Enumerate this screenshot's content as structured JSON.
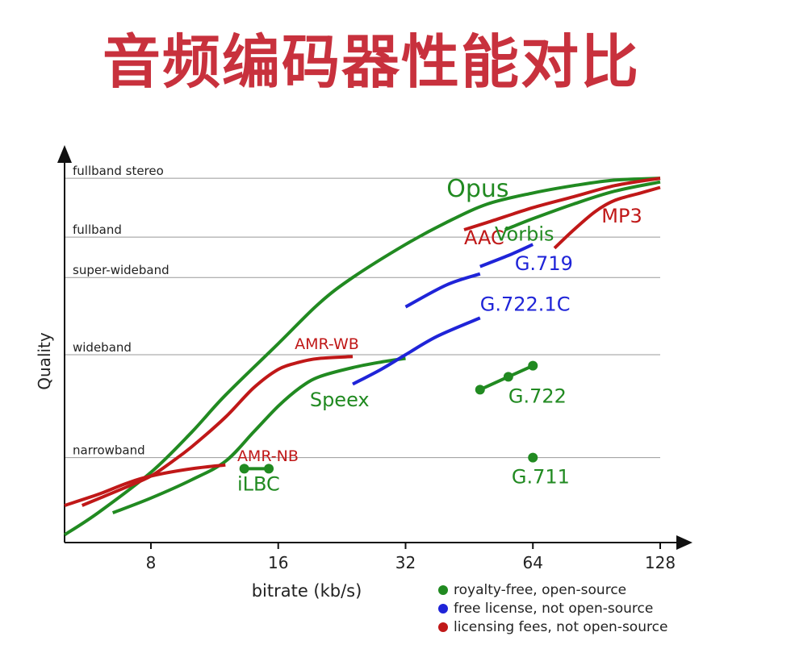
{
  "page": {
    "title": "音频编码器性能对比"
  },
  "colors": {
    "title": "#c8313d",
    "green": "#218a21",
    "blue": "#1f24d8",
    "red": "#c01818",
    "grid": "#999999",
    "axis": "#111111"
  },
  "chart_data": {
    "type": "line",
    "xlabel": "bitrate (kb/s)",
    "ylabel": "Quality",
    "xscale": "log2",
    "xlim": [
      5,
      128
    ],
    "ylim": [
      0,
      100
    ],
    "xticks": [
      8,
      16,
      32,
      64,
      128
    ],
    "quality_levels": [
      {
        "label": "fullband stereo",
        "value": 98
      },
      {
        "label": "fullband",
        "value": 82
      },
      {
        "label": "super-wideband",
        "value": 71
      },
      {
        "label": "wideband",
        "value": 50
      },
      {
        "label": "narrowband",
        "value": 22
      }
    ],
    "legend": [
      {
        "label": "royalty-free, open-source",
        "color": "green"
      },
      {
        "label": "free license, not open-source",
        "color": "blue"
      },
      {
        "label": "licensing fees, not open-source",
        "color": "red"
      }
    ],
    "series": [
      {
        "name": "Opus",
        "color": "green",
        "kind": "line",
        "points": [
          [
            5,
            1
          ],
          [
            6,
            7
          ],
          [
            8,
            18
          ],
          [
            10,
            29
          ],
          [
            12,
            39
          ],
          [
            16,
            53
          ],
          [
            20,
            64
          ],
          [
            24,
            71
          ],
          [
            32,
            80
          ],
          [
            40,
            86
          ],
          [
            50,
            91
          ],
          [
            64,
            94
          ],
          [
            80,
            96
          ],
          [
            100,
            97.5
          ],
          [
            128,
            98
          ]
        ]
      },
      {
        "name": "AAC",
        "color": "red",
        "kind": "line",
        "points": [
          [
            44,
            84
          ],
          [
            50,
            86
          ],
          [
            64,
            90
          ],
          [
            80,
            93
          ],
          [
            100,
            96
          ],
          [
            128,
            98
          ]
        ]
      },
      {
        "name": "Vorbis",
        "color": "green",
        "kind": "line",
        "points": [
          [
            55,
            84
          ],
          [
            64,
            87
          ],
          [
            80,
            91
          ],
          [
            100,
            94.5
          ],
          [
            128,
            97
          ]
        ]
      },
      {
        "name": "MP3",
        "color": "red",
        "kind": "line",
        "points": [
          [
            72,
            79
          ],
          [
            80,
            84
          ],
          [
            90,
            89
          ],
          [
            100,
            92
          ],
          [
            115,
            94
          ],
          [
            128,
            95.5
          ]
        ]
      },
      {
        "name": "G.719",
        "color": "blue",
        "kind": "line",
        "points": [
          [
            48,
            74
          ],
          [
            56,
            77
          ],
          [
            64,
            80
          ]
        ]
      },
      {
        "name": "G.722.1C",
        "color": "blue",
        "kind": "line",
        "points": [
          [
            32,
            63
          ],
          [
            40,
            69
          ],
          [
            48,
            72
          ]
        ]
      },
      {
        "name": "AMR-WB",
        "color": "red",
        "kind": "line",
        "points": [
          [
            5.5,
            9
          ],
          [
            7,
            14
          ],
          [
            8,
            17
          ],
          [
            9,
            21
          ],
          [
            10,
            25
          ],
          [
            12,
            33
          ],
          [
            14,
            41
          ],
          [
            16,
            46
          ],
          [
            18,
            48
          ],
          [
            20,
            49
          ],
          [
            24,
            49.5
          ]
        ]
      },
      {
        "name": "Speex",
        "color": "green",
        "kind": "line",
        "points": [
          [
            6.5,
            7
          ],
          [
            8,
            11
          ],
          [
            10,
            16
          ],
          [
            12,
            21
          ],
          [
            14,
            29
          ],
          [
            16,
            36
          ],
          [
            18,
            41
          ],
          [
            20,
            44
          ],
          [
            24,
            46.5
          ],
          [
            28,
            48
          ],
          [
            32,
            49
          ]
        ]
      },
      {
        "name": "AMR-NB",
        "color": "red",
        "kind": "line",
        "points": [
          [
            5,
            9
          ],
          [
            6,
            12
          ],
          [
            7,
            15
          ],
          [
            8,
            17
          ],
          [
            10,
            19
          ],
          [
            12,
            20
          ]
        ]
      },
      {
        "name": "G.722 (blue)",
        "color": "blue",
        "kind": "line",
        "points": [
          [
            24,
            42
          ],
          [
            28,
            46
          ],
          [
            32,
            50
          ],
          [
            38,
            55
          ],
          [
            48,
            60
          ]
        ]
      },
      {
        "name": "iLBC",
        "color": "green",
        "kind": "markers",
        "points": [
          [
            13.3,
            19
          ],
          [
            15.2,
            19
          ]
        ]
      },
      {
        "name": "G.722",
        "color": "green",
        "kind": "markers",
        "points": [
          [
            48,
            40.5
          ],
          [
            56,
            44
          ],
          [
            64,
            47
          ]
        ]
      },
      {
        "name": "G.711",
        "color": "green",
        "kind": "markers",
        "points": [
          [
            64,
            22
          ]
        ]
      }
    ],
    "annotations": [
      {
        "text": "Opus",
        "color": "green",
        "x": 40,
        "y": 93,
        "size": 30
      },
      {
        "text": "AAC",
        "color": "red",
        "x": 44,
        "y": 80,
        "size": 24
      },
      {
        "text": "Vorbis",
        "color": "green",
        "x": 52,
        "y": 81,
        "size": 24
      },
      {
        "text": "MP3",
        "color": "red",
        "x": 93,
        "y": 86,
        "size": 24
      },
      {
        "text": "G.719",
        "color": "blue",
        "x": 58,
        "y": 73,
        "size": 24
      },
      {
        "text": "G.722.1C",
        "color": "blue",
        "x": 48,
        "y": 62,
        "size": 24
      },
      {
        "text": "AMR-WB",
        "color": "red",
        "x": 17.5,
        "y": 51.5,
        "size": 19
      },
      {
        "text": "Speex",
        "color": "green",
        "x": 19,
        "y": 36,
        "size": 24
      },
      {
        "text": "AMR-NB",
        "color": "red",
        "x": 12.8,
        "y": 21,
        "size": 19
      },
      {
        "text": "iLBC",
        "color": "green",
        "x": 12.8,
        "y": 13,
        "size": 24
      },
      {
        "text": "G.722",
        "color": "green",
        "x": 56,
        "y": 37,
        "size": 24
      },
      {
        "text": "G.711",
        "color": "green",
        "x": 57,
        "y": 15,
        "size": 24
      }
    ]
  }
}
